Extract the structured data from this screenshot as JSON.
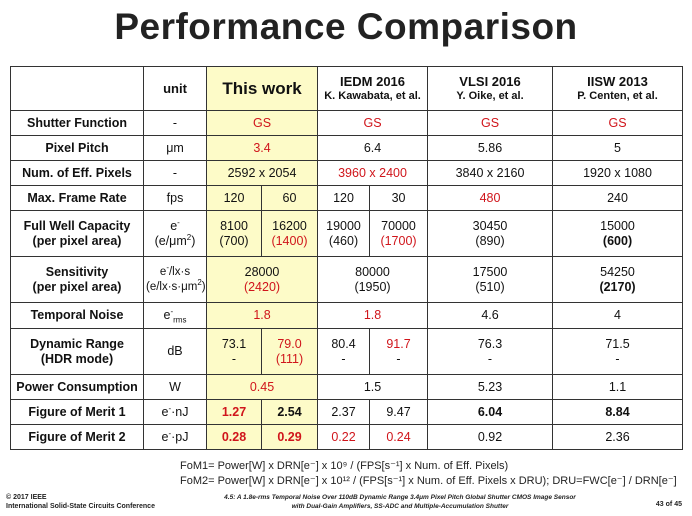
{
  "slide_title": "Performance Comparison",
  "header": {
    "unit": "unit",
    "this_work": "This work",
    "col2_title": "IEDM 2016",
    "col2_sub": "K. Kawabata, et al.",
    "col3_title": "VLSI 2016",
    "col3_sub": "Y. Oike, et al.",
    "col4_title": "IISW 2013",
    "col4_sub": "P. Centen, et al."
  },
  "rows": {
    "shutter": {
      "label": "Shutter Function",
      "unit": "-",
      "tw": "GS",
      "iedm": "GS",
      "vlsi": "GS",
      "iisw": "GS"
    },
    "pitch": {
      "label": "Pixel Pitch",
      "unit": "μm",
      "tw": "3.4",
      "iedm": "6.4",
      "vlsi": "5.86",
      "iisw": "5"
    },
    "pixels": {
      "label": "Num. of Eff. Pixels",
      "unit": "-",
      "tw": "2592 x 2054",
      "iedm": "3960 x 2400",
      "vlsi": "3840 x 2160",
      "iisw": "1920 x 1080"
    },
    "framerate": {
      "label": "Max. Frame Rate",
      "unit": "fps",
      "tw1": "120",
      "tw2": "60",
      "iedm1": "120",
      "iedm2": "30",
      "vlsi": "480",
      "iisw": "240"
    },
    "fwc": {
      "label1": "Full Well Capacity",
      "label2": "(per pixel area)",
      "unit1": "e",
      "unit1_sup": "-",
      "unit2a": "(e/μm",
      "unit2_sup": "2",
      "unit2b": ")",
      "tw1_a": "8100",
      "tw1_b": "(700)",
      "tw2_a": "16200",
      "tw2_b": "(1400)",
      "iedm1_a": "19000",
      "iedm1_b": "(460)",
      "iedm2_a": "70000",
      "iedm2_b": "(1700)",
      "vlsi_a": "30450",
      "vlsi_b": "(890)",
      "iisw_a": "15000",
      "iisw_b": "(600)"
    },
    "sensitivity": {
      "label1": "Sensitivity",
      "label2": "(per pixel area)",
      "unit1a": "e",
      "unit1_sup": "-",
      "unit1b": "/lx·s",
      "unit2a": "(e/lx·s·μm",
      "unit2_sup": "2",
      "unit2b": ")",
      "tw_a": "28000",
      "tw_b": "(2420)",
      "iedm_a": "80000",
      "iedm_b": "(1950)",
      "vlsi_a": "17500",
      "vlsi_b": "(510)",
      "iisw_a": "54250",
      "iisw_b": "(2170)"
    },
    "noise": {
      "label": "Temporal Noise",
      "unit": "e",
      "unit_sup": "-",
      "unit_sub": "rms",
      "tw": "1.8",
      "iedm": "1.8",
      "vlsi": "4.6",
      "iisw": "4"
    },
    "dr": {
      "label1": "Dynamic Range",
      "label2": "(HDR mode)",
      "unit": "dB",
      "tw1_a": "73.1",
      "tw1_b": "-",
      "tw2_a": "79.0",
      "tw2_b": "(111)",
      "iedm1_a": "80.4",
      "iedm1_b": "-",
      "iedm2_a": "91.7",
      "iedm2_b": "-",
      "vlsi_a": "76.3",
      "vlsi_b": "-",
      "iisw_a": "71.5",
      "iisw_b": "-"
    },
    "power": {
      "label": "Power Consumption",
      "unit": "W",
      "tw": "0.45",
      "iedm": "1.5",
      "vlsi": "5.23",
      "iisw": "1.1"
    },
    "fom1": {
      "label": "Figure of Merit 1",
      "unit_a": "e",
      "unit_sup": "-",
      "unit_b": "·nJ",
      "tw1": "1.27",
      "tw2": "2.54",
      "iedm1": "2.37",
      "iedm2": "9.47",
      "vlsi": "6.04",
      "iisw": "8.84"
    },
    "fom2": {
      "label": "Figure of Merit 2",
      "unit_a": "e",
      "unit_sup": "-",
      "unit_b": "·pJ",
      "tw1": "0.28",
      "tw2": "0.29",
      "iedm1": "0.22",
      "iedm2": "0.24",
      "vlsi": "0.92",
      "iisw": "2.36"
    }
  },
  "footnotes": {
    "fom1": "FoM1= Power[W] x DRN[e⁻] x 10⁹ / (FPS[s⁻¹] x Num. of Eff. Pixels)",
    "fom2": "FoM2= Power[W] x DRN[e⁻] x 10¹² / (FPS[s⁻¹] x Num. of Eff. Pixels x DRU); DRU=FWC[e⁻] / DRN[e⁻]"
  },
  "footer": {
    "copyright": "© 2017 IEEE",
    "conference": "International Solid-State Circuits Conference",
    "paper_line1": "4.5: A 1.8e-rms Temporal Noise Over 110dB Dynamic Range 3.4μm Pixel Pitch Global Shutter CMOS Image Sensor",
    "paper_line2": "with Dual-Gain Amplifiers, SS-ADC and Multiple-Accumulation Shutter",
    "page": "43",
    "of": "of",
    "total": "45"
  },
  "colors": {
    "highlight": "#fdfbc8",
    "red": "#d0151b"
  }
}
